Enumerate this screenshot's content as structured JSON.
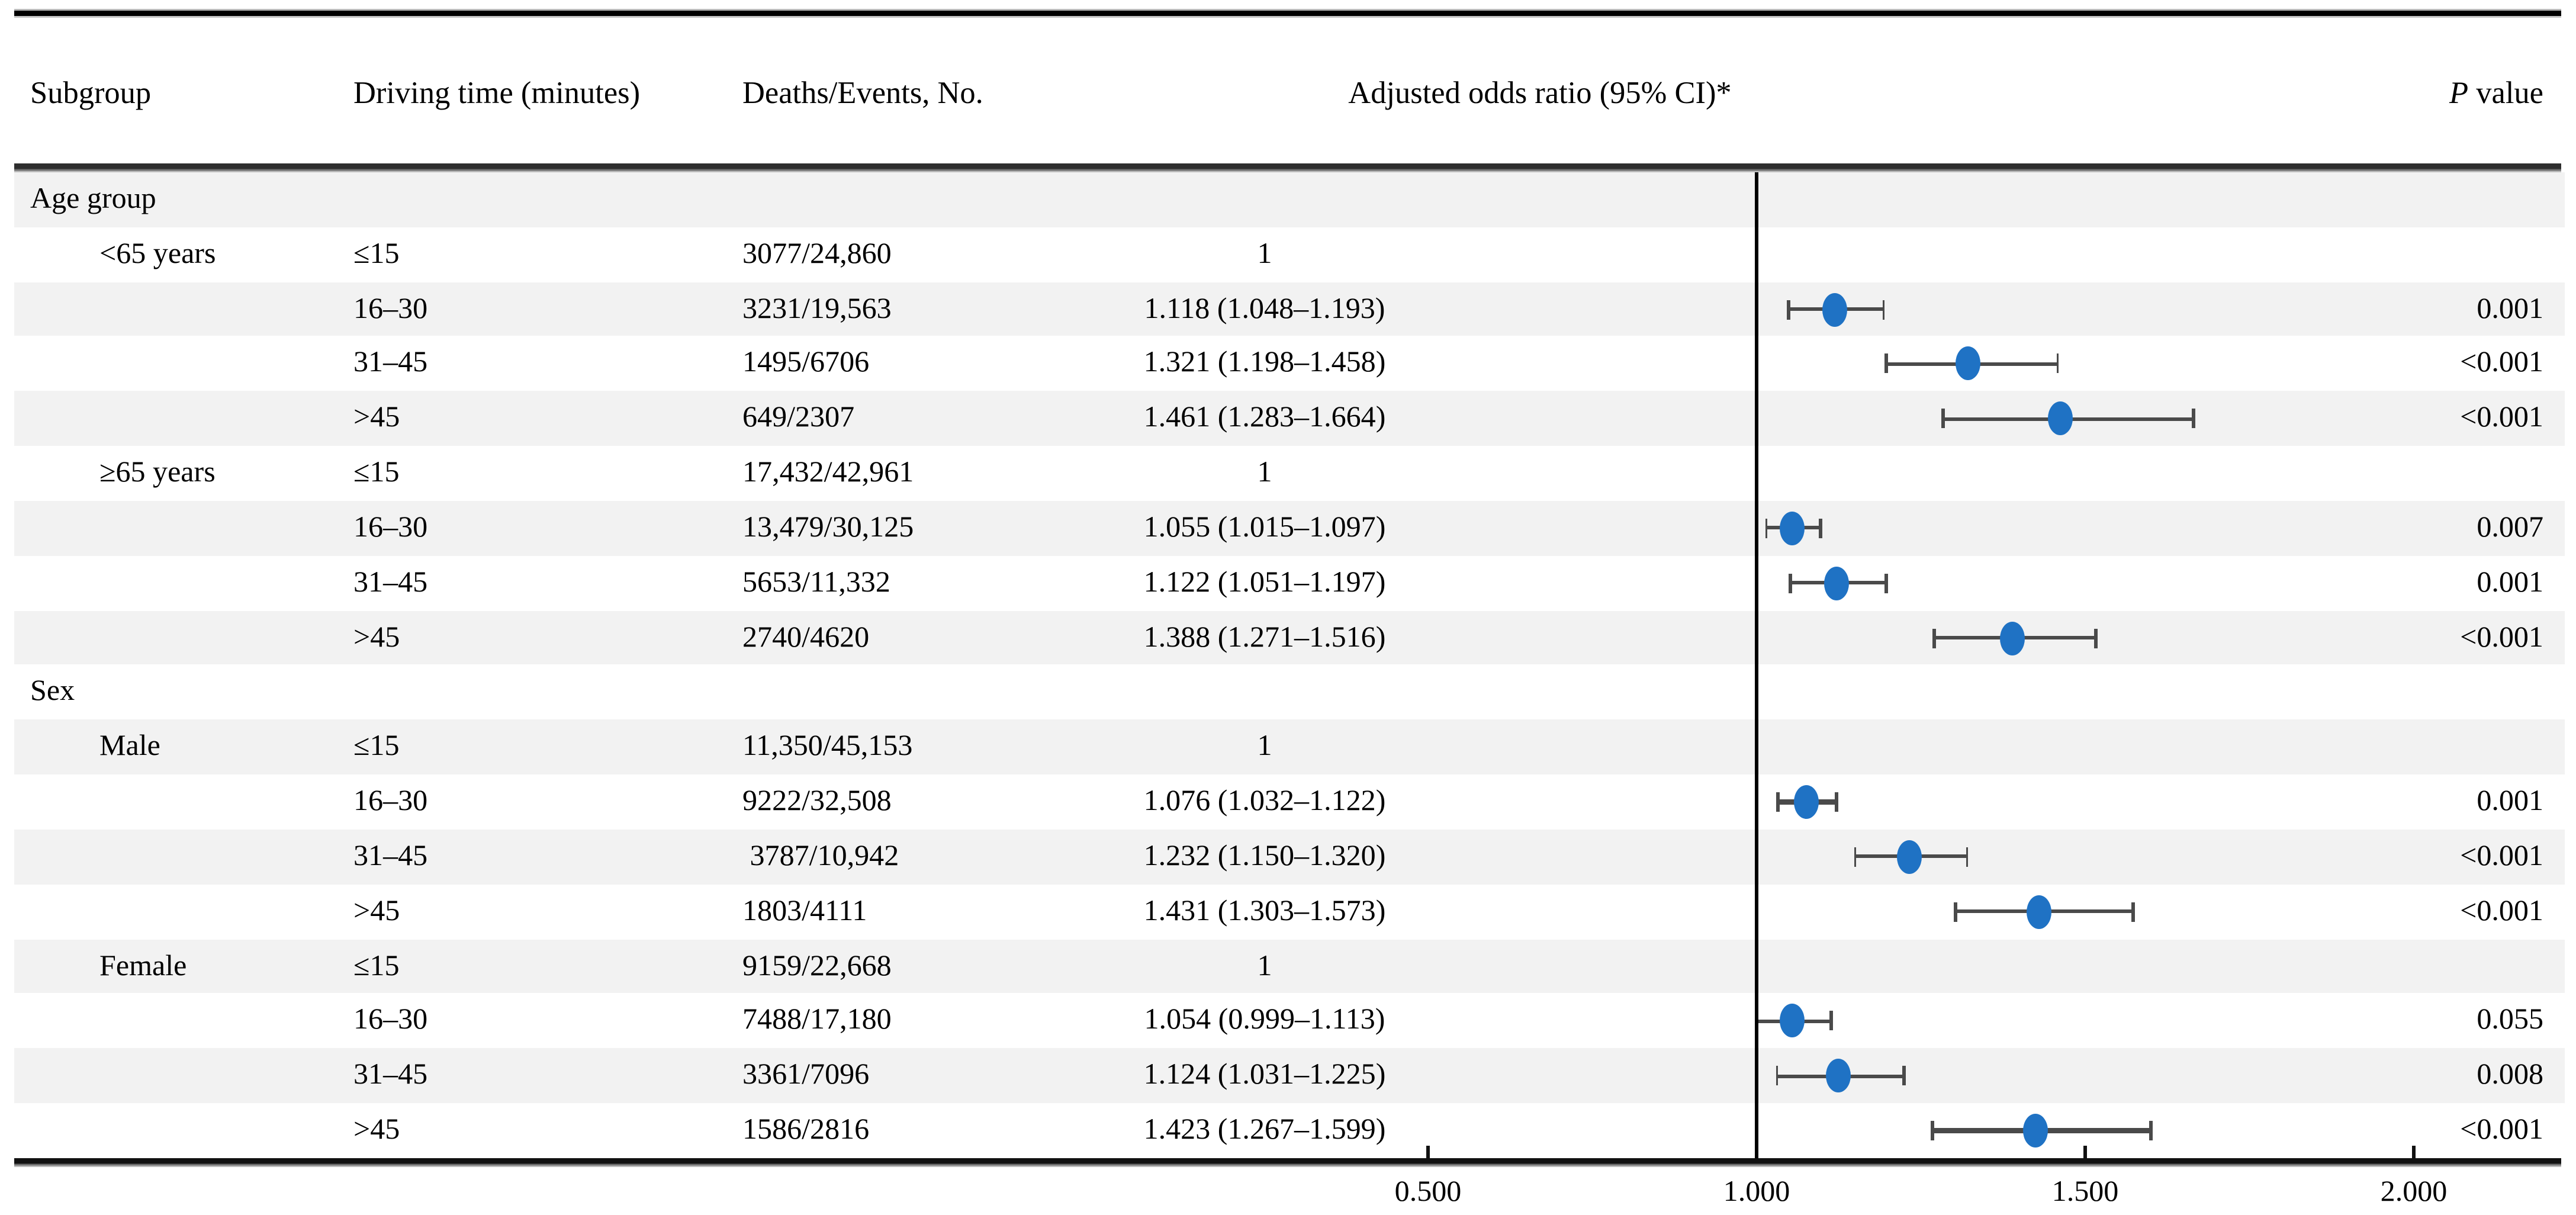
{
  "header": {
    "subgroup": "Subgroup",
    "driving_time": "Driving time (minutes)",
    "deaths_events": "Deaths/Events, No.",
    "odds_ratio": "Adjusted odds ratio (95% CI)*",
    "p_italic": "P",
    "p_rest": " value"
  },
  "axis": {
    "tick_labels": [
      "0.500",
      "1.000",
      "1.500",
      "2.000"
    ],
    "tick_values": [
      0.5,
      1.0,
      1.5,
      2.0
    ],
    "reference_value": 1.0
  },
  "colors": {
    "marker_blue": "#1f72c4",
    "ci_gray": "#4a4a4a",
    "row_alt_gray": "#f2f2f2"
  },
  "rows": [
    {
      "kind": "section",
      "label": "Age group"
    },
    {
      "kind": "data",
      "subgroup": "<65 years",
      "driving_time": "≤15",
      "deaths_events": "3077/24,860",
      "or_text": "1",
      "p": "",
      "reference": true
    },
    {
      "kind": "data",
      "subgroup": "",
      "driving_time": "16–30",
      "deaths_events": "3231/19,563",
      "or_text": "1.118 (1.048–1.193)",
      "or": 1.118,
      "ci_low": 1.048,
      "ci_high": 1.193,
      "p": "0.001"
    },
    {
      "kind": "data",
      "subgroup": "",
      "driving_time": "31–45",
      "deaths_events": "1495/6706",
      "or_text": "1.321 (1.198–1.458)",
      "or": 1.321,
      "ci_low": 1.198,
      "ci_high": 1.458,
      "p": "<0.001"
    },
    {
      "kind": "data",
      "subgroup": "",
      "driving_time": ">45",
      "deaths_events": "649/2307",
      "or_text": "1.461 (1.283–1.664)",
      "or": 1.461,
      "ci_low": 1.283,
      "ci_high": 1.664,
      "p": "<0.001"
    },
    {
      "kind": "data",
      "subgroup": "≥65 years",
      "driving_time": "≤15",
      "deaths_events": "17,432/42,961",
      "or_text": "1",
      "p": "",
      "reference": true
    },
    {
      "kind": "data",
      "subgroup": "",
      "driving_time": "16–30",
      "deaths_events": "13,479/30,125",
      "or_text": "1.055 (1.015–1.097)",
      "or": 1.055,
      "ci_low": 1.015,
      "ci_high": 1.097,
      "p": "0.007"
    },
    {
      "kind": "data",
      "subgroup": "",
      "driving_time": "31–45",
      "deaths_events": "5653/11,332",
      "or_text": "1.122 (1.051–1.197)",
      "or": 1.122,
      "ci_low": 1.051,
      "ci_high": 1.197,
      "p": "0.001"
    },
    {
      "kind": "data",
      "subgroup": "",
      "driving_time": ">45",
      "deaths_events": "2740/4620",
      "or_text": "1.388 (1.271–1.516)",
      "or": 1.388,
      "ci_low": 1.271,
      "ci_high": 1.516,
      "p": "<0.001"
    },
    {
      "kind": "section",
      "label": "Sex"
    },
    {
      "kind": "data",
      "subgroup": "Male",
      "driving_time": "≤15",
      "deaths_events": "11,350/45,153",
      "or_text": "1",
      "p": "",
      "reference": true
    },
    {
      "kind": "data",
      "subgroup": "",
      "driving_time": "16–30",
      "deaths_events": "9222/32,508",
      "or_text": "1.076 (1.032–1.122)",
      "or": 1.076,
      "ci_low": 1.032,
      "ci_high": 1.122,
      "p": "0.001"
    },
    {
      "kind": "data",
      "subgroup": "",
      "driving_time": "31–45",
      "deaths_events": " 3787/10,942",
      "or_text": "1.232 (1.150–1.320)",
      "or": 1.232,
      "ci_low": 1.15,
      "ci_high": 1.32,
      "p": "<0.001"
    },
    {
      "kind": "data",
      "subgroup": "",
      "driving_time": ">45",
      "deaths_events": "1803/4111",
      "or_text": "1.431 (1.303–1.573)",
      "or": 1.431,
      "ci_low": 1.303,
      "ci_high": 1.573,
      "p": "<0.001"
    },
    {
      "kind": "data",
      "subgroup": "Female",
      "driving_time": "≤15",
      "deaths_events": "9159/22,668",
      "or_text": "1",
      "p": "",
      "reference": true
    },
    {
      "kind": "data",
      "subgroup": "",
      "driving_time": "16–30",
      "deaths_events": "7488/17,180",
      "or_text": "1.054 (0.999–1.113)",
      "or": 1.054,
      "ci_low": 0.999,
      "ci_high": 1.113,
      "p": "0.055"
    },
    {
      "kind": "data",
      "subgroup": "",
      "driving_time": "31–45",
      "deaths_events": "3361/7096",
      "or_text": "1.124 (1.031–1.225)",
      "or": 1.124,
      "ci_low": 1.031,
      "ci_high": 1.225,
      "p": "0.008"
    },
    {
      "kind": "data",
      "subgroup": "",
      "driving_time": ">45",
      "deaths_events": "1586/2816",
      "or_text": "1.423 (1.267–1.599)",
      "or": 1.423,
      "ci_low": 1.267,
      "ci_high": 1.599,
      "p": "<0.001"
    }
  ],
  "chart_data": {
    "type": "scatter",
    "variant": "forest-plot",
    "title": "",
    "xlabel": "Adjusted odds ratio (95% CI)*",
    "x_ticks": [
      0.5,
      1.0,
      1.5,
      2.0
    ],
    "x_tick_labels": [
      "0.500",
      "1.000",
      "1.500",
      "2.000"
    ],
    "xlim": [
      0.45,
      2.1
    ],
    "reference_line_x": 1.0,
    "grid": false,
    "legend": "none",
    "points": [
      {
        "group": "Age group",
        "subgroup": "<65 years",
        "category": "≤15",
        "deaths_events": "3077/24,860",
        "or": 1.0,
        "reference": true
      },
      {
        "group": "Age group",
        "subgroup": "<65 years",
        "category": "16–30",
        "deaths_events": "3231/19,563",
        "or": 1.118,
        "ci_low": 1.048,
        "ci_high": 1.193,
        "p": "0.001"
      },
      {
        "group": "Age group",
        "subgroup": "<65 years",
        "category": "31–45",
        "deaths_events": "1495/6706",
        "or": 1.321,
        "ci_low": 1.198,
        "ci_high": 1.458,
        "p": "<0.001"
      },
      {
        "group": "Age group",
        "subgroup": "<65 years",
        "category": ">45",
        "deaths_events": "649/2307",
        "or": 1.461,
        "ci_low": 1.283,
        "ci_high": 1.664,
        "p": "<0.001"
      },
      {
        "group": "Age group",
        "subgroup": "≥65 years",
        "category": "≤15",
        "deaths_events": "17,432/42,961",
        "or": 1.0,
        "reference": true
      },
      {
        "group": "Age group",
        "subgroup": "≥65 years",
        "category": "16–30",
        "deaths_events": "13,479/30,125",
        "or": 1.055,
        "ci_low": 1.015,
        "ci_high": 1.097,
        "p": "0.007"
      },
      {
        "group": "Age group",
        "subgroup": "≥65 years",
        "category": "31–45",
        "deaths_events": "5653/11,332",
        "or": 1.122,
        "ci_low": 1.051,
        "ci_high": 1.197,
        "p": "0.001"
      },
      {
        "group": "Age group",
        "subgroup": "≥65 years",
        "category": ">45",
        "deaths_events": "2740/4620",
        "or": 1.388,
        "ci_low": 1.271,
        "ci_high": 1.516,
        "p": "<0.001"
      },
      {
        "group": "Sex",
        "subgroup": "Male",
        "category": "≤15",
        "deaths_events": "11,350/45,153",
        "or": 1.0,
        "reference": true
      },
      {
        "group": "Sex",
        "subgroup": "Male",
        "category": "16–30",
        "deaths_events": "9222/32,508",
        "or": 1.076,
        "ci_low": 1.032,
        "ci_high": 1.122,
        "p": "0.001"
      },
      {
        "group": "Sex",
        "subgroup": "Male",
        "category": "31–45",
        "deaths_events": "3787/10,942",
        "or": 1.232,
        "ci_low": 1.15,
        "ci_high": 1.32,
        "p": "<0.001"
      },
      {
        "group": "Sex",
        "subgroup": "Male",
        "category": ">45",
        "deaths_events": "1803/4111",
        "or": 1.431,
        "ci_low": 1.303,
        "ci_high": 1.573,
        "p": "<0.001"
      },
      {
        "group": "Sex",
        "subgroup": "Female",
        "category": "≤15",
        "deaths_events": "9159/22,668",
        "or": 1.0,
        "reference": true
      },
      {
        "group": "Sex",
        "subgroup": "Female",
        "category": "16–30",
        "deaths_events": "7488/17,180",
        "or": 1.054,
        "ci_low": 0.999,
        "ci_high": 1.113,
        "p": "0.055"
      },
      {
        "group": "Sex",
        "subgroup": "Female",
        "category": "31–45",
        "deaths_events": "3361/7096",
        "or": 1.124,
        "ci_low": 1.031,
        "ci_high": 1.225,
        "p": "0.008"
      },
      {
        "group": "Sex",
        "subgroup": "Female",
        "category": ">45",
        "deaths_events": "1586/2816",
        "or": 1.423,
        "ci_low": 1.267,
        "ci_high": 1.599,
        "p": "<0.001"
      }
    ]
  }
}
